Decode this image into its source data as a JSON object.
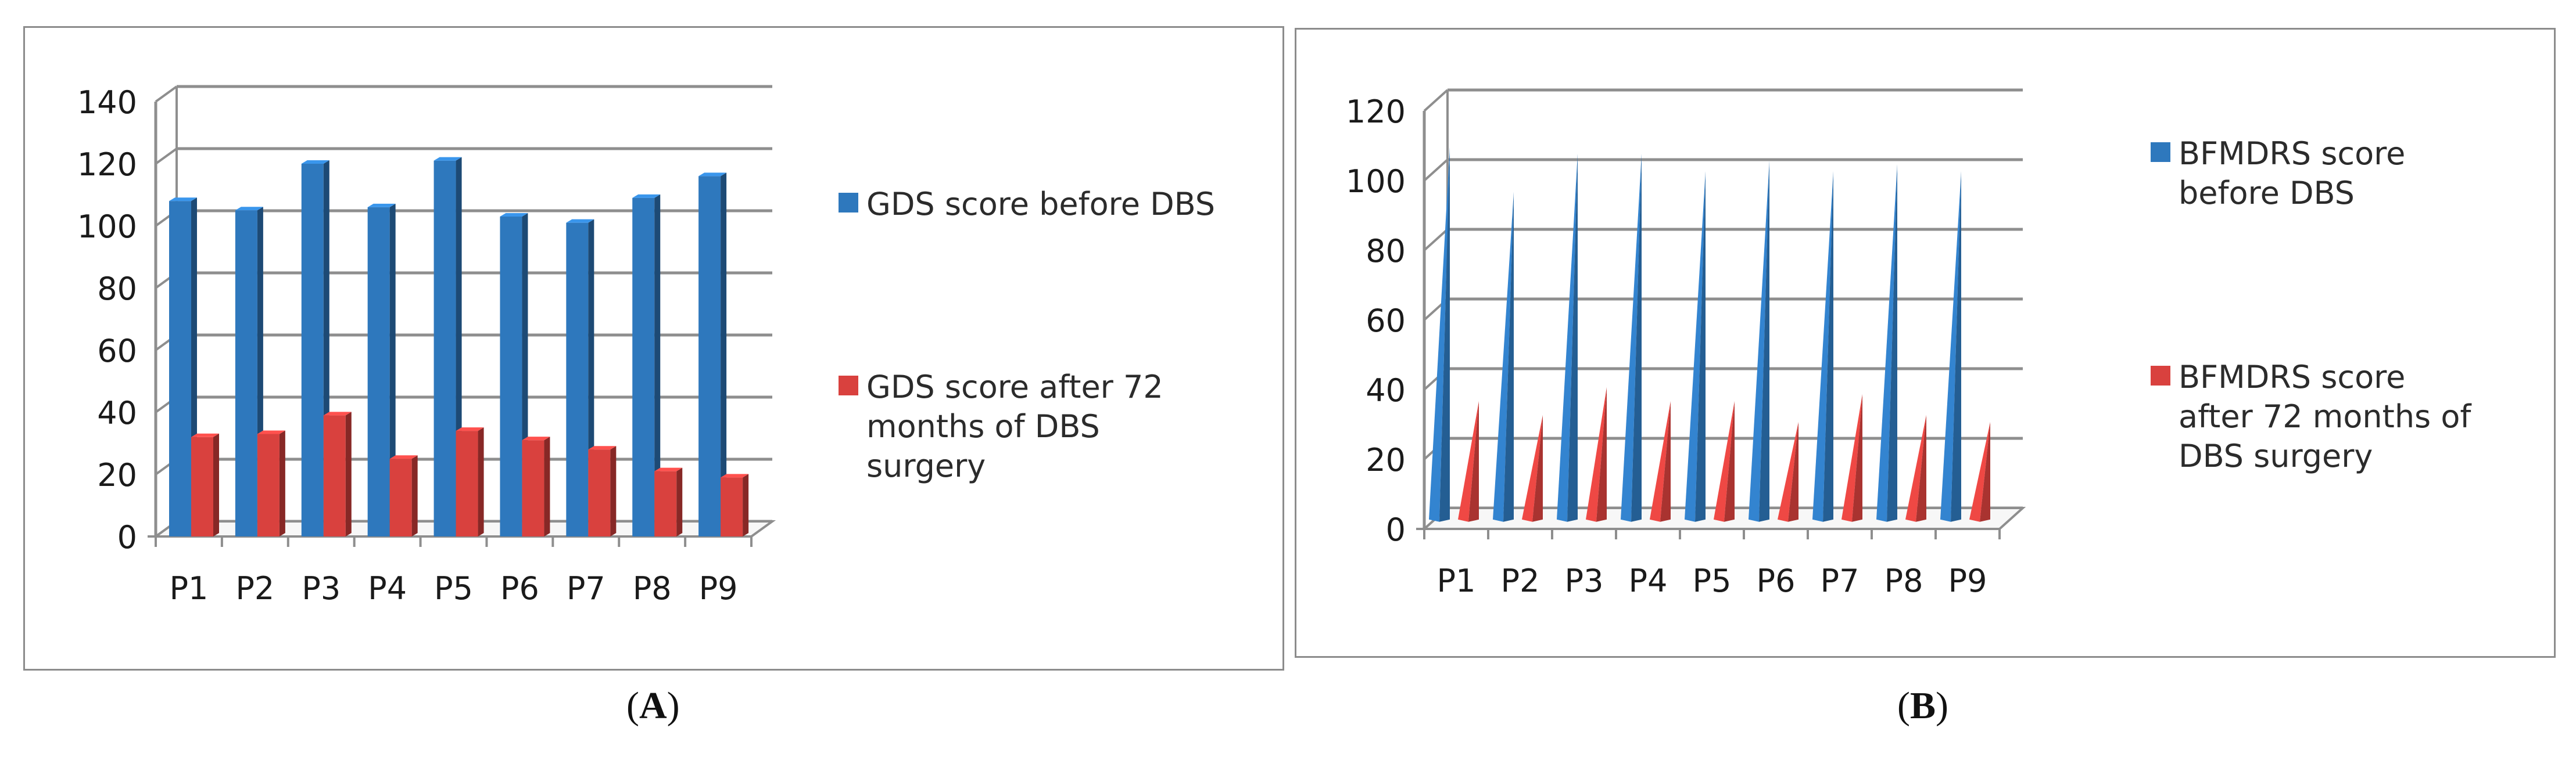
{
  "chart_data": [
    {
      "panel": "A",
      "type": "bar",
      "categories": [
        "P1",
        "P2",
        "P3",
        "P4",
        "P5",
        "P6",
        "P7",
        "P8",
        "P9"
      ],
      "series": [
        {
          "name": "GDS score before DBS",
          "color": "#2e78bd",
          "values": [
            108,
            105,
            120,
            106,
            121,
            103,
            101,
            109,
            116
          ]
        },
        {
          "name": "GDS score after 72  months of DBS surgery",
          "color": "#d9413e",
          "values": [
            32,
            33,
            39,
            25,
            34,
            31,
            28,
            21,
            19
          ]
        }
      ],
      "yticks": [
        "0",
        "20",
        "40",
        "60",
        "80",
        "100",
        "120",
        "140"
      ],
      "ylim": [
        0,
        140
      ],
      "grid": true,
      "legend": "right"
    },
    {
      "panel": "B",
      "type": "bar",
      "shape": "cone",
      "categories": [
        "P1",
        "P2",
        "P3",
        "P4",
        "P5",
        "P6",
        "P7",
        "P8",
        "P9"
      ],
      "series": [
        {
          "name": "BFMDRS score before DBS",
          "color": "#2e78bd",
          "values": [
            107,
            94,
            105,
            105,
            100,
            103,
            100,
            102,
            100
          ]
        },
        {
          "name": "BFMDRS score after 72 months of DBS surgery",
          "color": "#d9413e",
          "values": [
            34,
            30,
            38,
            34,
            34,
            28,
            36,
            30,
            28
          ]
        }
      ],
      "yticks": [
        "0",
        "20",
        "40",
        "60",
        "80",
        "100",
        "120"
      ],
      "ylim": [
        0,
        120
      ],
      "grid": true,
      "legend": "right"
    }
  ],
  "captions": {
    "a_letter": "A",
    "b_letter": "B",
    "open": "(",
    "close": ")"
  }
}
